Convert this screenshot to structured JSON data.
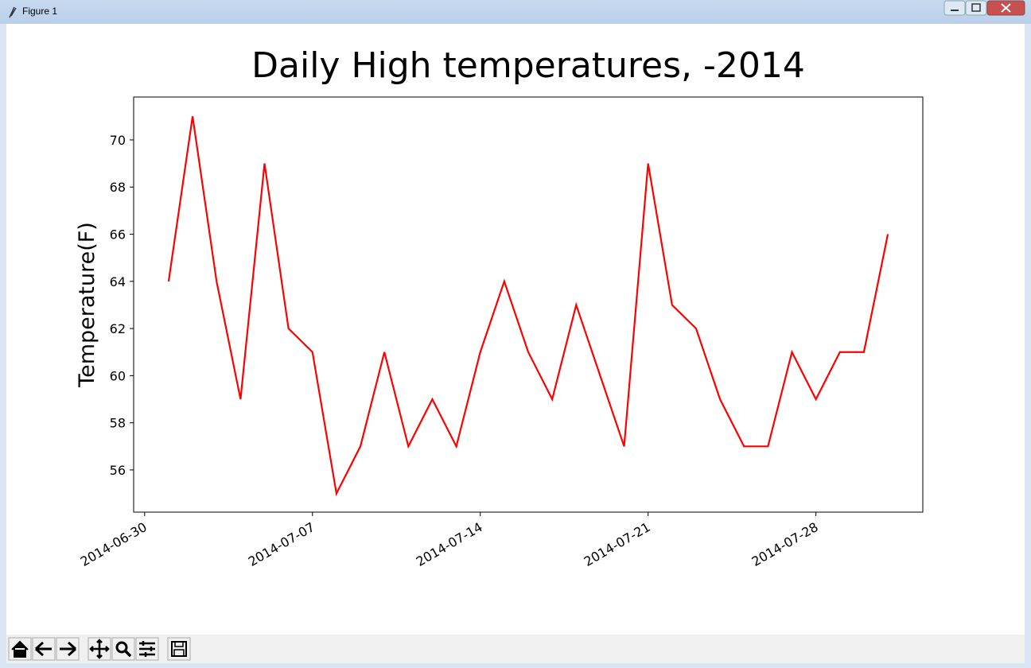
{
  "window": {
    "title": "Figure 1"
  },
  "chart_data": {
    "type": "line",
    "title": "Daily High temperatures, -2014",
    "y_label": "Temperature(F)",
    "x": [
      "2014-07-01",
      "2014-07-02",
      "2014-07-03",
      "2014-07-04",
      "2014-07-05",
      "2014-07-06",
      "2014-07-07",
      "2014-07-08",
      "2014-07-09",
      "2014-07-10",
      "2014-07-11",
      "2014-07-12",
      "2014-07-13",
      "2014-07-14",
      "2014-07-15",
      "2014-07-16",
      "2014-07-17",
      "2014-07-18",
      "2014-07-19",
      "2014-07-20",
      "2014-07-21",
      "2014-07-22",
      "2014-07-23",
      "2014-07-24",
      "2014-07-25",
      "2014-07-26",
      "2014-07-27",
      "2014-07-28",
      "2014-07-29",
      "2014-07-30",
      "2014-07-31"
    ],
    "series": [
      {
        "color": "#ff0000",
        "values": [
          64,
          71,
          64,
          59,
          69,
          62,
          61,
          55,
          57,
          61,
          57,
          59,
          57,
          61,
          64,
          61,
          59,
          63,
          60,
          57,
          69,
          63,
          62,
          59,
          57,
          57,
          61,
          59,
          61,
          61,
          66
        ]
      }
    ],
    "xlim": [
      "2014-06-29T13:00",
      "2014-08-01T11:00"
    ],
    "xticks": [
      "2014-06-30",
      "2014-07-07",
      "2014-07-14",
      "2014-07-21",
      "2014-07-28"
    ],
    "ylim": [
      54.21,
      71.82
    ],
    "yticks": [
      56,
      58,
      60,
      62,
      64,
      66,
      68,
      70
    ],
    "grid": false
  }
}
